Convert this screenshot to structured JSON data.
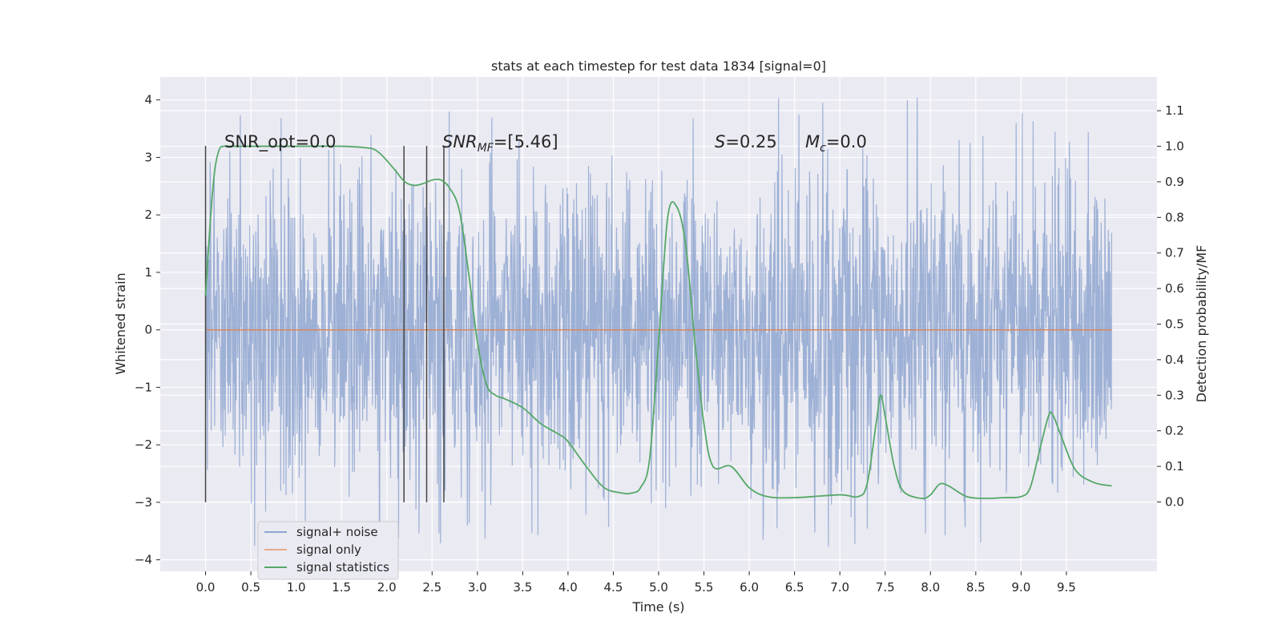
{
  "chart_data": {
    "type": "line",
    "title": "stats at each timestep for test data 1834 [signal=0]",
    "xlabel": "Time (s)",
    "ylabel_left": "Whitened strain",
    "ylabel_right": "Detection probability/MF",
    "xlim": [
      -0.5,
      10.5
    ],
    "ylim_left": [
      -4.2,
      4.4
    ],
    "ylim_right": [
      -0.195,
      1.195
    ],
    "xticks": [
      "0.0",
      "0.5",
      "1.0",
      "1.5",
      "2.0",
      "2.5",
      "3.0",
      "3.5",
      "4.0",
      "4.5",
      "5.0",
      "5.5",
      "6.0",
      "6.5",
      "7.0",
      "7.5",
      "8.0",
      "8.5",
      "9.0",
      "9.5"
    ],
    "yticks_left": [
      "−4",
      "−3",
      "−2",
      "−1",
      "0",
      "1",
      "2",
      "3",
      "4"
    ],
    "yticks_right": [
      "0.0",
      "0.1",
      "0.2",
      "0.3",
      "0.4",
      "0.5",
      "0.6",
      "0.7",
      "0.8",
      "0.9",
      "1.0",
      "1.1"
    ],
    "grid": true,
    "legend_position": "lower-left",
    "series": [
      {
        "name": "signal+ noise",
        "axis": "left",
        "color": "#8fa6d0",
        "style": "noise",
        "x_range": [
          0.0,
          10.0
        ],
        "approx_band_1sigma": [
          -1.3,
          1.4
        ],
        "approx_extremes": [
          -3.8,
          4.05
        ]
      },
      {
        "name": "signal only",
        "axis": "left",
        "color": "#dd8452",
        "x": [
          0.0,
          10.0
        ],
        "values": [
          0.0,
          0.0
        ]
      },
      {
        "name": "signal statistics",
        "axis": "right",
        "color": "#55a868",
        "x": [
          0.0,
          0.05,
          0.1,
          0.15,
          0.2,
          0.3,
          0.5,
          1.0,
          1.5,
          1.8,
          1.9,
          2.0,
          2.1,
          2.2,
          2.3,
          2.4,
          2.5,
          2.6,
          2.7,
          2.8,
          2.9,
          3.0,
          3.1,
          3.2,
          3.3,
          3.5,
          3.7,
          3.9,
          4.0,
          4.2,
          4.4,
          4.6,
          4.7,
          4.8,
          4.9,
          5.0,
          5.1,
          5.2,
          5.3,
          5.4,
          5.5,
          5.6,
          5.8,
          6.0,
          6.2,
          6.5,
          7.0,
          7.2,
          7.3,
          7.4,
          7.45,
          7.5,
          7.6,
          7.7,
          7.9,
          8.0,
          8.1,
          8.2,
          8.4,
          8.6,
          8.8,
          9.0,
          9.1,
          9.2,
          9.3,
          9.35,
          9.45,
          9.6,
          9.8,
          10.0
        ],
        "values": [
          0.58,
          0.78,
          0.93,
          0.99,
          1.0,
          1.0,
          1.0,
          1.0,
          1.0,
          0.995,
          0.985,
          0.96,
          0.93,
          0.9,
          0.89,
          0.895,
          0.905,
          0.905,
          0.88,
          0.82,
          0.65,
          0.45,
          0.33,
          0.3,
          0.29,
          0.265,
          0.22,
          0.19,
          0.17,
          0.1,
          0.04,
          0.025,
          0.025,
          0.04,
          0.12,
          0.45,
          0.8,
          0.83,
          0.72,
          0.45,
          0.22,
          0.1,
          0.1,
          0.04,
          0.015,
          0.012,
          0.02,
          0.015,
          0.05,
          0.22,
          0.3,
          0.24,
          0.1,
          0.03,
          0.01,
          0.02,
          0.05,
          0.045,
          0.015,
          0.01,
          0.012,
          0.015,
          0.04,
          0.14,
          0.24,
          0.245,
          0.18,
          0.09,
          0.055,
          0.045
        ]
      }
    ],
    "vertical_markers": {
      "color": "#444444",
      "x": [
        0.0,
        2.19,
        2.44,
        2.63
      ],
      "range_left": [
        -3.0,
        3.2
      ]
    },
    "annotations": {
      "snr_opt": "SNR_opt=0.0",
      "snr_mf_label": "SNR",
      "snr_mf_sub": "MF",
      "snr_mf_value": "=[5.46]",
      "s_label": "S",
      "s_value": "=0.25",
      "mc_label": "M",
      "mc_sub": "c",
      "mc_value": "=0.0"
    }
  }
}
